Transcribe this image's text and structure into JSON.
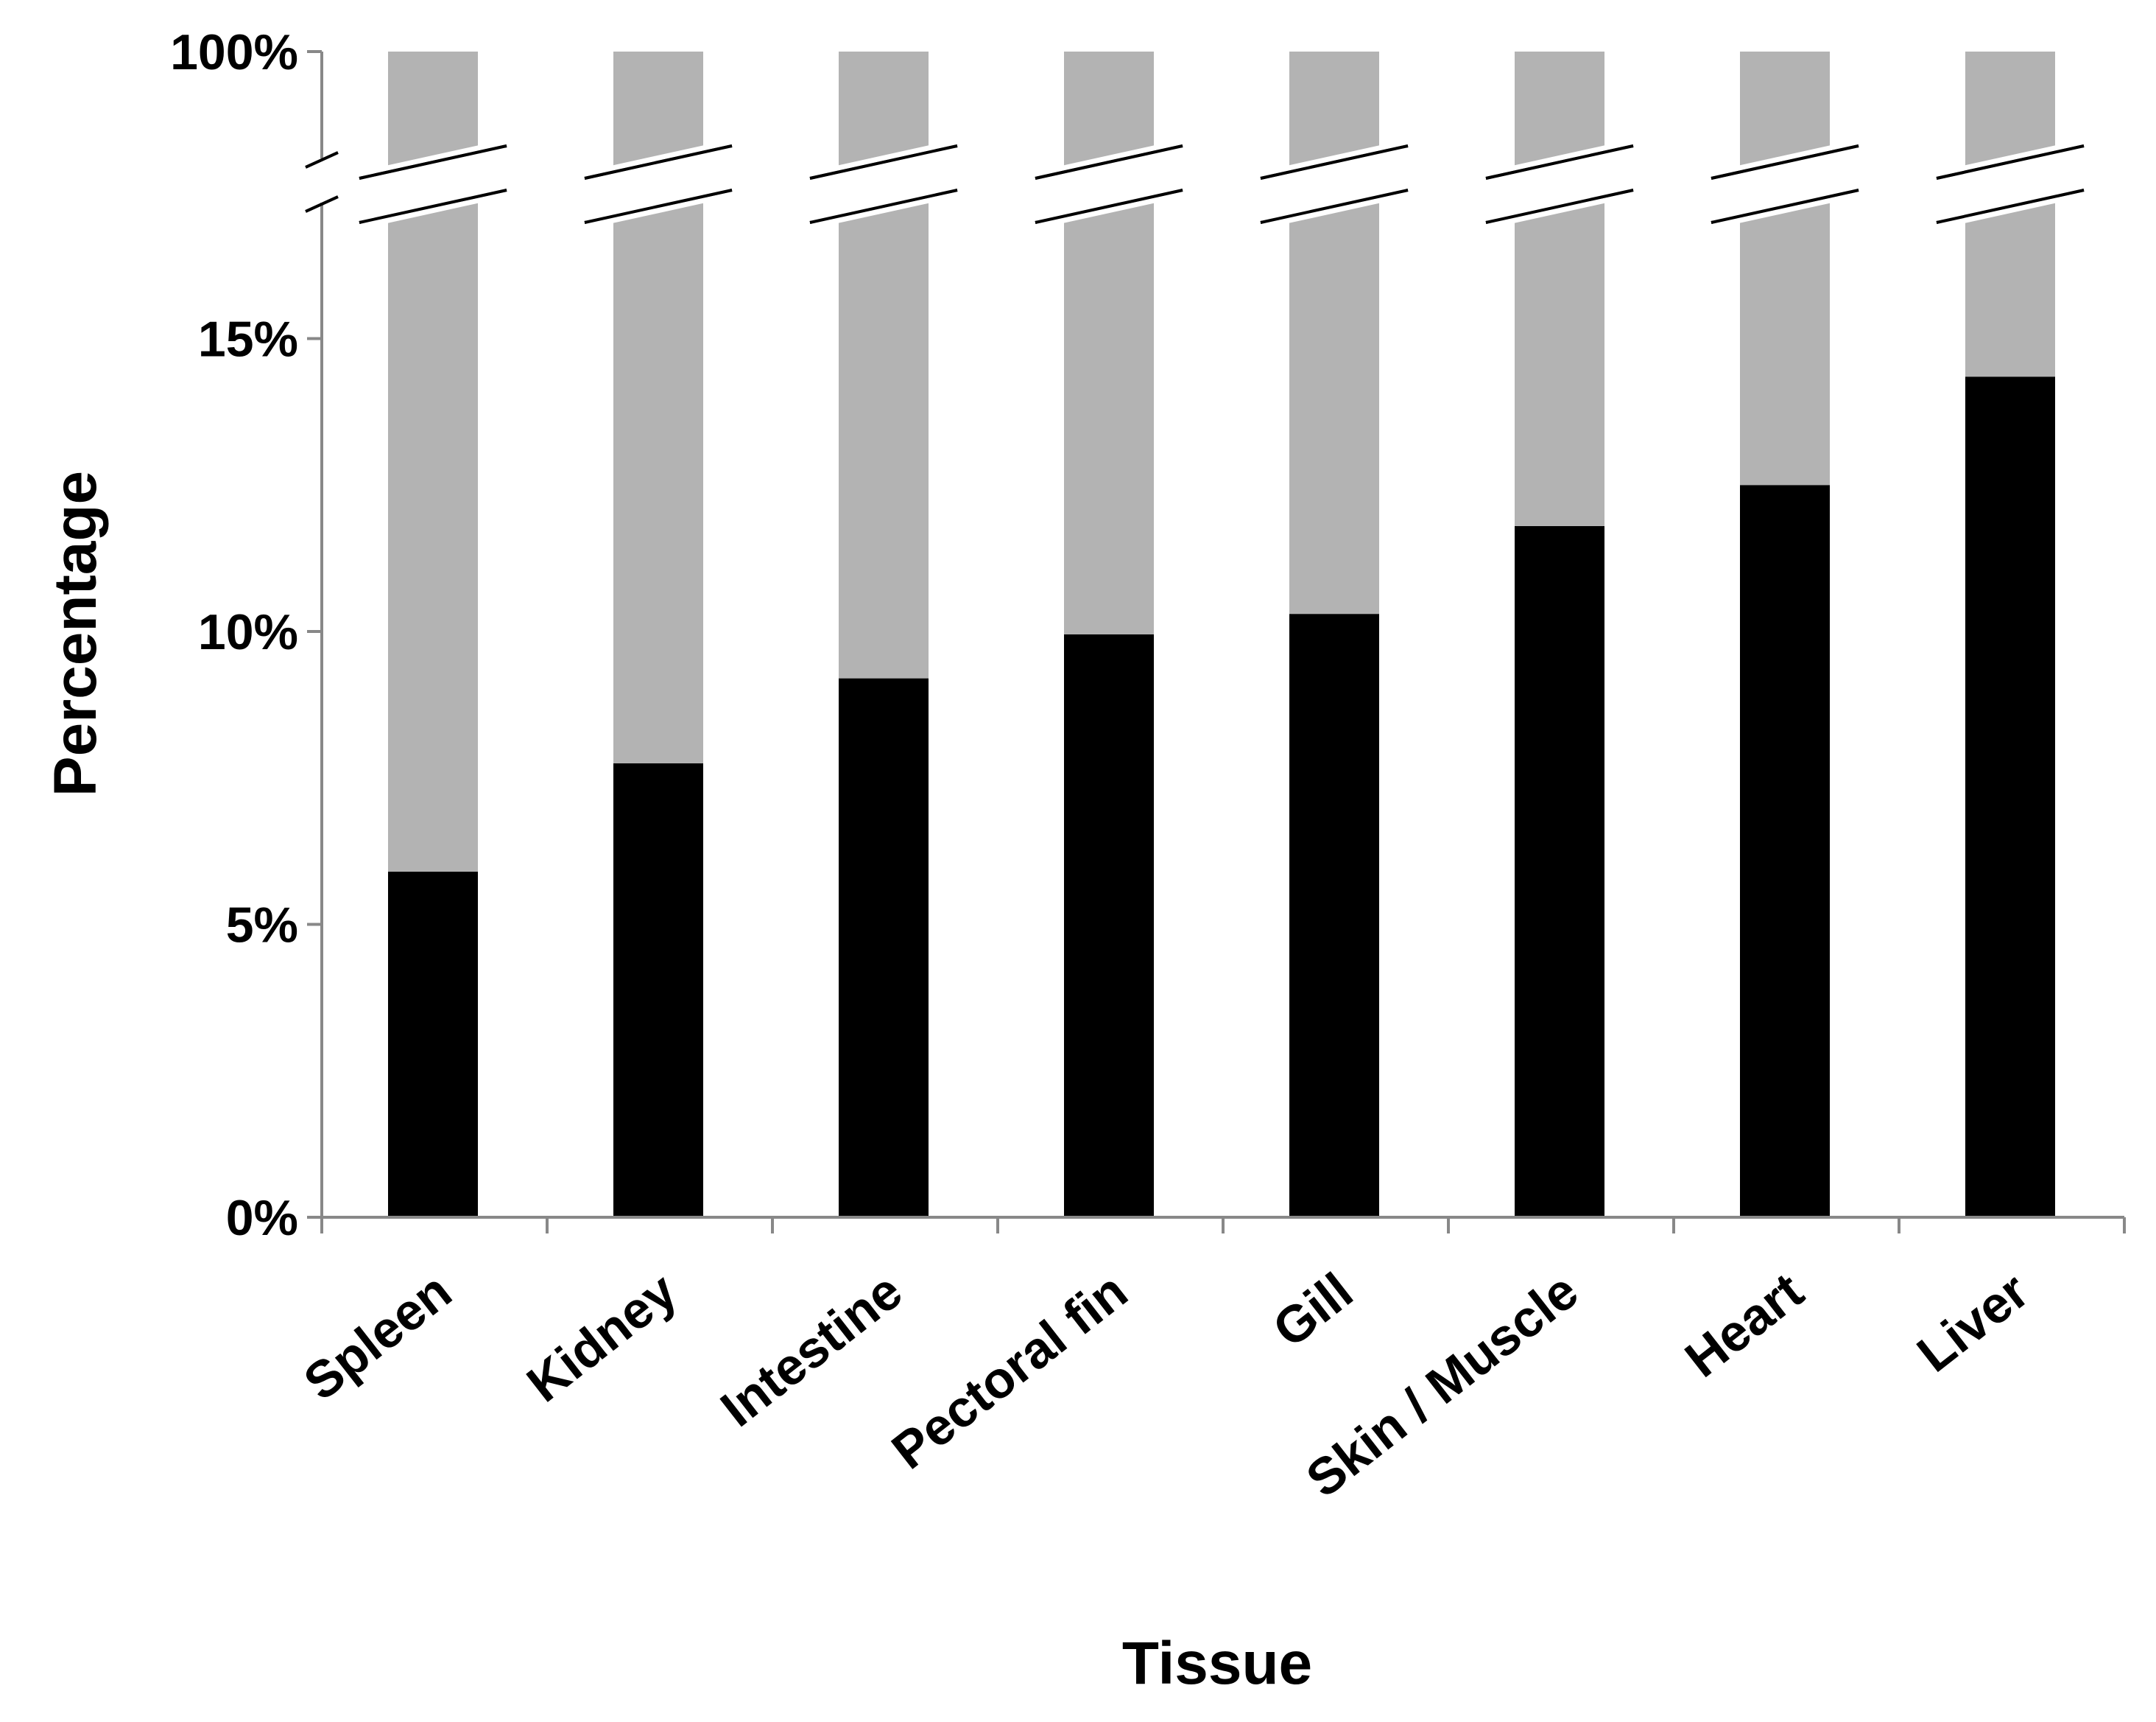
{
  "chart_data": {
    "type": "bar",
    "stacked": true,
    "xlabel": "Tissue",
    "ylabel": "Percentage",
    "categories": [
      "Spleen",
      "Kidney",
      "Intestine",
      "Pectoral fin",
      "Gill",
      "Skin / Muscle",
      "Heart",
      "Liver"
    ],
    "series": [
      {
        "values": [
          5.9,
          7.75,
          9.2,
          9.95,
          10.3,
          11.8,
          12.5,
          14.35
        ],
        "color": "#000000"
      },
      {
        "values": [
          94.1,
          92.25,
          90.8,
          90.05,
          89.7,
          88.2,
          87.5,
          85.65
        ],
        "color": "#b3b3b3"
      }
    ],
    "yticks": [
      "0%",
      "5%",
      "10%",
      "15%",
      "100%"
    ],
    "ylim": [
      0,
      100
    ],
    "axis_break": {
      "from": 20,
      "to": 100
    },
    "grid": false,
    "legend": "none"
  }
}
